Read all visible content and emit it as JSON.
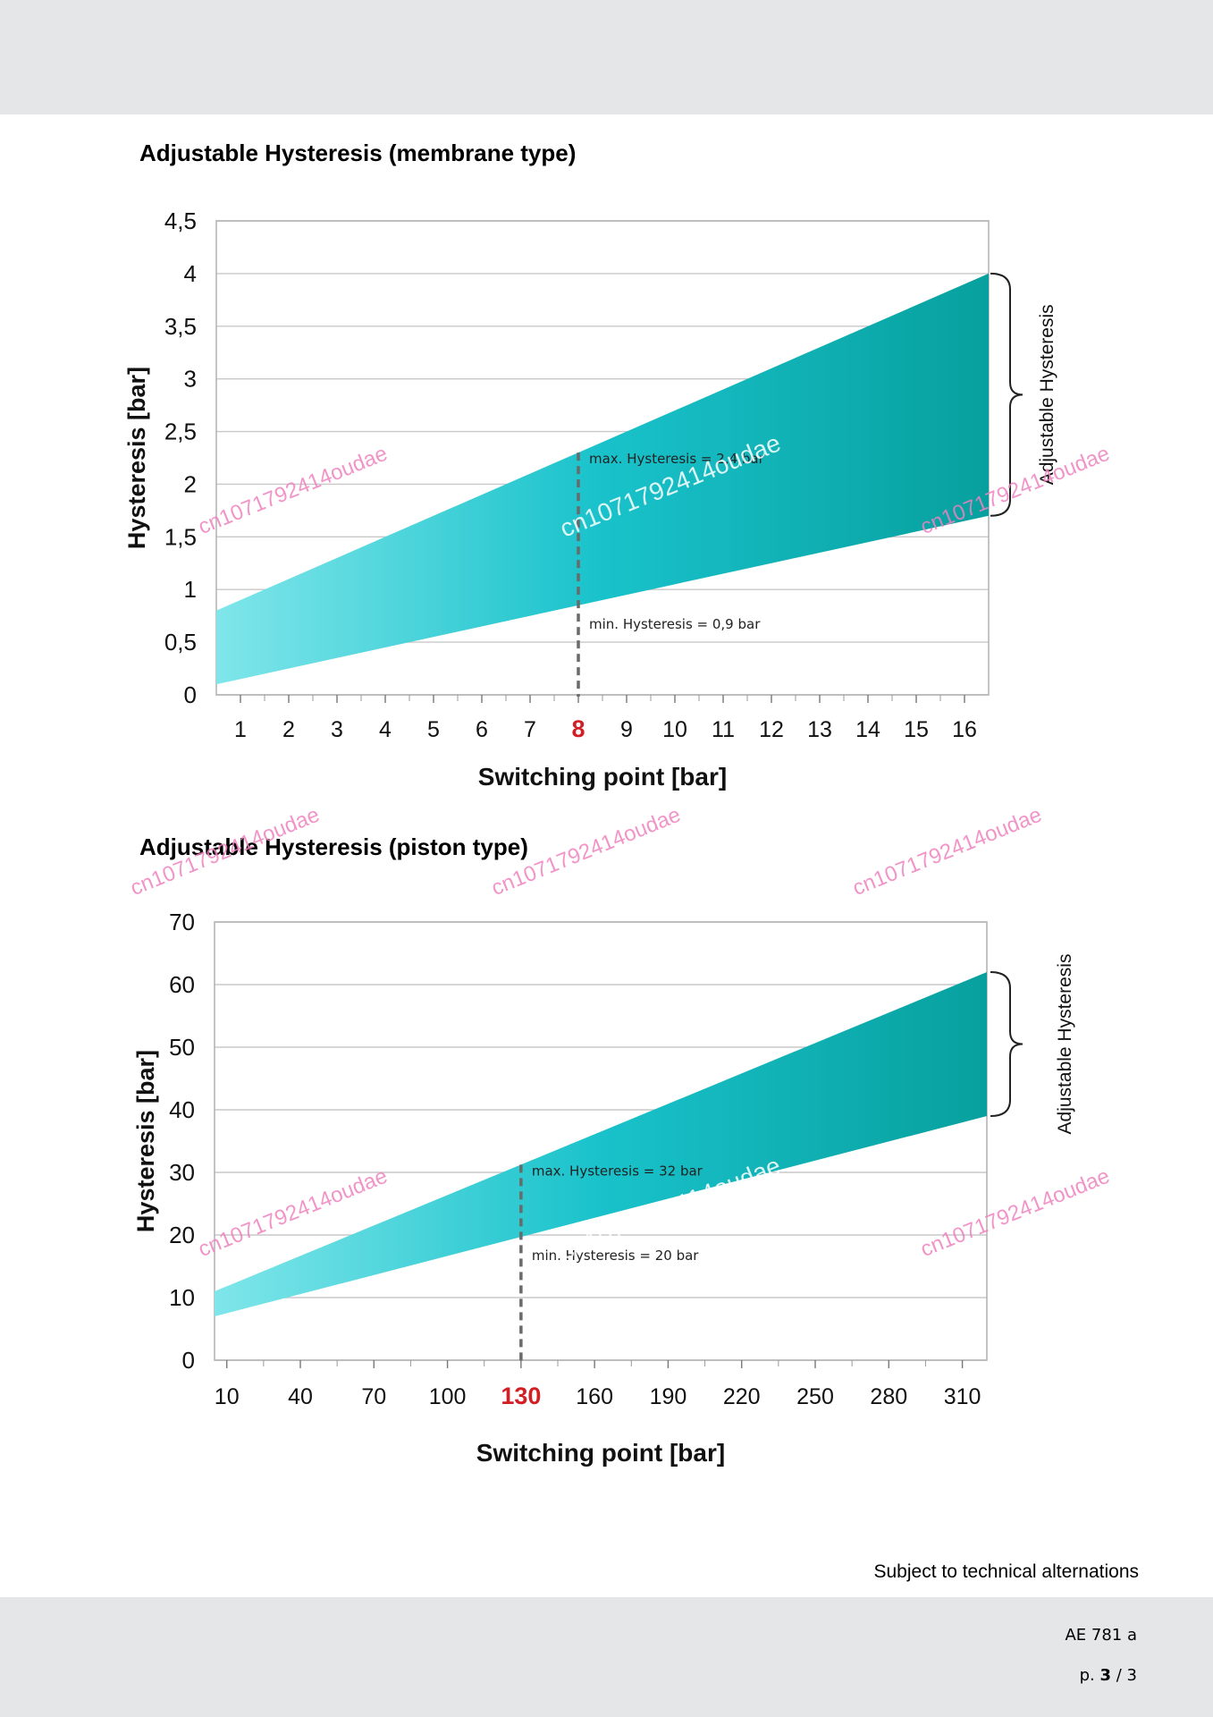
{
  "footer": {
    "note": "Subject to technical alternations",
    "doc_code": "AE 781 a",
    "page_prefix": "p.",
    "page_current": "3",
    "page_sep": "/ 3"
  },
  "watermark_text": "cn1071792414oudae",
  "chart_data": [
    {
      "type": "area",
      "title": "Adjustable Hysteresis (membrane type)",
      "xlabel": "Switching point [bar]",
      "ylabel": "Hysteresis  [bar]",
      "bracket_label": "Adjustable Hysteresis",
      "x_ticks": [
        "1",
        "2",
        "3",
        "4",
        "5",
        "6",
        "7",
        "8",
        "9",
        "10",
        "11",
        "12",
        "13",
        "14",
        "15",
        "16"
      ],
      "highlight_tick": "8",
      "y_ticks": [
        "0",
        "0,5",
        "1",
        "1,5",
        "2",
        "2,5",
        "3",
        "3,5",
        "4",
        "4,5"
      ],
      "xlim": [
        0.5,
        16.5
      ],
      "ylim": [
        0,
        4.5
      ],
      "grid": true,
      "upper": {
        "x": [
          0.5,
          16.5
        ],
        "y": [
          0.8,
          4.0
        ]
      },
      "lower": {
        "x": [
          0.5,
          16.5
        ],
        "y": [
          0.1,
          1.7
        ]
      },
      "marker_x": 8,
      "annotations": {
        "max": "max. Hysteresis = 2,4 bar",
        "min": "min. Hysteresis = 0,9 bar"
      },
      "colors": {
        "left": "#7fe6ea",
        "mid": "#19c2cb",
        "right": "#07a09e",
        "highlight": "#d21f26"
      }
    },
    {
      "type": "area",
      "title": "Adjustable Hysteresis (piston type)",
      "xlabel": "Switching point [bar]",
      "ylabel": "Hysteresis [bar]",
      "bracket_label": "Adjustable Hysteresis",
      "x_ticks": [
        "10",
        "40",
        "70",
        "100",
        "130",
        "160",
        "190",
        "220",
        "250",
        "280",
        "310"
      ],
      "highlight_tick": "130",
      "y_ticks": [
        "0",
        "10",
        "20",
        "30",
        "40",
        "50",
        "60",
        "70"
      ],
      "xlim": [
        5,
        320
      ],
      "ylim": [
        0,
        70
      ],
      "grid": true,
      "upper": {
        "x": [
          5,
          320
        ],
        "y": [
          11,
          62
        ]
      },
      "lower": {
        "x": [
          5,
          320
        ],
        "y": [
          7,
          39
        ]
      },
      "marker_x": 130,
      "annotations": {
        "max": "max. Hysteresis = 32 bar",
        "min": "min. Hysteresis = 20 bar"
      },
      "colors": {
        "left": "#7fe6ea",
        "mid": "#19c2cb",
        "right": "#07a09e",
        "highlight": "#d21f26"
      }
    }
  ]
}
